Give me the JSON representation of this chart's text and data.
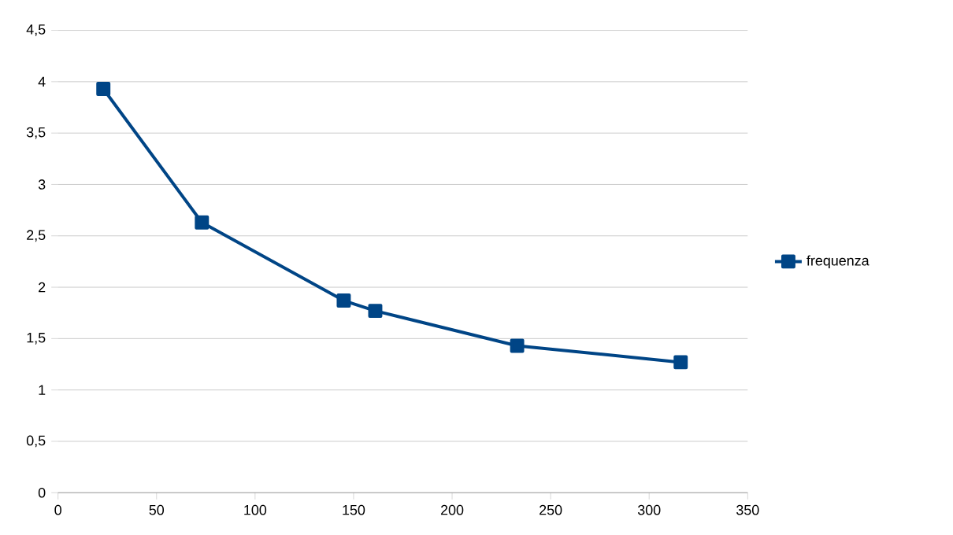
{
  "chart_data": {
    "type": "line",
    "x": [
      23,
      73,
      145,
      161,
      233,
      316
    ],
    "series": [
      {
        "name": "frequenza",
        "color": "#004586",
        "values": [
          3.93,
          2.63,
          1.87,
          1.77,
          1.43,
          1.27
        ]
      }
    ],
    "xlim": [
      0,
      350
    ],
    "xticks": [
      0,
      50,
      100,
      150,
      200,
      250,
      300,
      350
    ],
    "ylim": [
      0,
      4.5
    ],
    "yticks": [
      0,
      {
        "value": 0.5,
        "label": "0,5"
      },
      1,
      {
        "value": 1.5,
        "label": "1,5"
      },
      2,
      {
        "value": 2.5,
        "label": "2,5"
      },
      3,
      {
        "value": 3.5,
        "label": "3,5"
      },
      4,
      {
        "value": 4.5,
        "label": "4,5"
      }
    ],
    "grid": "y",
    "legend": "right",
    "marker": "square",
    "line_style": "solid"
  }
}
